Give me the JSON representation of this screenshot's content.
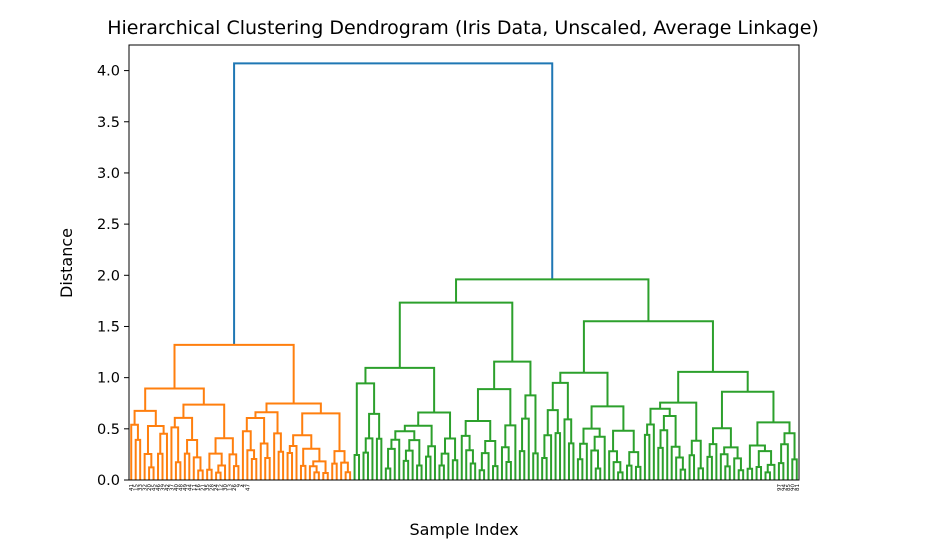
{
  "chart_data": {
    "type": "dendrogram",
    "title": "Hierarchical Clustering Dendrogram (Iris Data, Unscaled, Average Linkage)",
    "xlabel": "Sample Index",
    "ylabel": "Distance",
    "ylim": [
      0,
      4.25
    ],
    "yticks": [
      "0.0",
      "0.5",
      "1.0",
      "1.5",
      "2.0",
      "2.5",
      "3.0",
      "3.5",
      "4.0"
    ],
    "ytick_values": [
      0.0,
      0.5,
      1.0,
      1.5,
      2.0,
      2.5,
      3.0,
      3.5,
      4.0
    ],
    "grid": false,
    "leaf_count": 150,
    "colors": {
      "root": "#1f77b4",
      "cluster_1": "#ff7f0e",
      "cluster_2": "#2ca02c"
    },
    "major_merges": [
      {
        "name": "root",
        "height": 4.07,
        "cluster": "root"
      },
      {
        "name": "cluster-1",
        "height": 1.32,
        "cluster": "cluster_1"
      },
      {
        "name": "cluster-2",
        "height": 1.96,
        "cluster": "cluster_2"
      }
    ],
    "leaf_labels_start": [
      "41",
      "15",
      "33",
      "32",
      "20",
      "45",
      "46",
      "39",
      "42",
      "37",
      "40",
      "48",
      "49",
      "44",
      "11",
      "16",
      "21",
      "35",
      "28",
      "24",
      "12",
      "30",
      "13",
      "26",
      "9",
      "4",
      "47"
    ],
    "leaf_labels_end": [
      "97",
      "94",
      "85",
      "90",
      "81"
    ]
  }
}
